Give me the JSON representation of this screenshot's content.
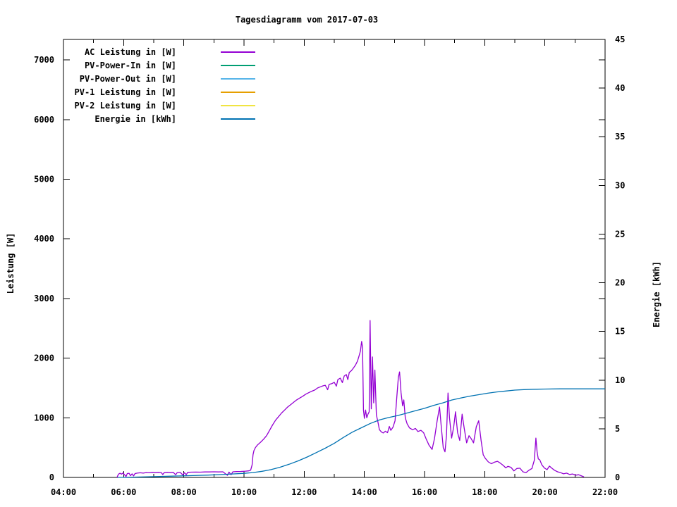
{
  "chart_data": {
    "type": "line",
    "title": "Tagesdiagramm vom 2017-07-03",
    "background_color": "#ffffff",
    "axis_color": "#000000",
    "grid": false,
    "x_axis": {
      "unit": "time of day",
      "range": [
        4,
        22
      ],
      "major_ticks": [
        4,
        6,
        8,
        10,
        12,
        14,
        16,
        18,
        20,
        22
      ],
      "major_tick_labels": [
        "04:00",
        "06:00",
        "08:00",
        "10:00",
        "12:00",
        "14:00",
        "16:00",
        "18:00",
        "20:00",
        "22:00"
      ],
      "minor_ticks": [
        5,
        7,
        9,
        11,
        13,
        15,
        17,
        19,
        21
      ]
    },
    "left_axis": {
      "label": "Leistung [W]",
      "range": [
        0,
        7343
      ],
      "ticks": [
        0,
        1000,
        2000,
        3000,
        4000,
        5000,
        6000,
        7000
      ],
      "tick_labels": [
        "0",
        "1000",
        "2000",
        "3000",
        "4000",
        "5000",
        "6000",
        "7000"
      ]
    },
    "right_axis": {
      "label": "Energie [kWh]",
      "range": [
        0,
        45
      ],
      "ticks": [
        0,
        5,
        10,
        15,
        20,
        25,
        30,
        35,
        40,
        45
      ],
      "tick_labels": [
        "0",
        "5",
        "10",
        "15",
        "20",
        "25",
        "30",
        "35",
        "40",
        "45"
      ],
      "mirror_left_ticks_on_right_border": true
    },
    "legend": {
      "position": "top-left",
      "entries": [
        {
          "label": "AC Leistung in [W]",
          "color": "#9400d3"
        },
        {
          "label": "PV-Power-In in [W]",
          "color": "#009e73"
        },
        {
          "label": "PV-Power-Out in [W]",
          "color": "#56b4e9"
        },
        {
          "label": "PV-1 Leistung in [W]",
          "color": "#e69f00"
        },
        {
          "label": "PV-2 Leistung in [W]",
          "color": "#f0e442"
        },
        {
          "label": "Energie in [kWh]",
          "color": "#0072b2"
        }
      ]
    },
    "series": [
      {
        "name": "AC Leistung in [W]",
        "color": "#9400d3",
        "axis": "left",
        "unit": "W",
        "visible": true,
        "points": [
          [
            5.78,
            0
          ],
          [
            5.8,
            25
          ],
          [
            5.83,
            55
          ],
          [
            5.88,
            70
          ],
          [
            5.93,
            55
          ],
          [
            5.98,
            75
          ],
          [
            6.03,
            45
          ],
          [
            6.08,
            15
          ],
          [
            6.12,
            65
          ],
          [
            6.18,
            70
          ],
          [
            6.23,
            30
          ],
          [
            6.28,
            60
          ],
          [
            6.33,
            25
          ],
          [
            6.38,
            65
          ],
          [
            6.45,
            72
          ],
          [
            6.55,
            78
          ],
          [
            6.65,
            72
          ],
          [
            6.75,
            82
          ],
          [
            6.85,
            78
          ],
          [
            6.95,
            85
          ],
          [
            7.05,
            80
          ],
          [
            7.15,
            85
          ],
          [
            7.25,
            82
          ],
          [
            7.3,
            48
          ],
          [
            7.35,
            80
          ],
          [
            7.45,
            85
          ],
          [
            7.55,
            80
          ],
          [
            7.65,
            85
          ],
          [
            7.73,
            45
          ],
          [
            7.78,
            82
          ],
          [
            7.88,
            85
          ],
          [
            7.97,
            40
          ],
          [
            8.02,
            80
          ],
          [
            8.08,
            45
          ],
          [
            8.13,
            85
          ],
          [
            8.25,
            88
          ],
          [
            8.4,
            90
          ],
          [
            8.55,
            88
          ],
          [
            8.7,
            92
          ],
          [
            8.85,
            92
          ],
          [
            9.0,
            95
          ],
          [
            9.15,
            92
          ],
          [
            9.3,
            95
          ],
          [
            9.45,
            35
          ],
          [
            9.5,
            90
          ],
          [
            9.57,
            45
          ],
          [
            9.63,
            95
          ],
          [
            9.75,
            98
          ],
          [
            9.9,
            100
          ],
          [
            10.05,
            105
          ],
          [
            10.15,
            110
          ],
          [
            10.22,
            120
          ],
          [
            10.27,
            210
          ],
          [
            10.3,
            380
          ],
          [
            10.33,
            450
          ],
          [
            10.38,
            500
          ],
          [
            10.45,
            545
          ],
          [
            10.55,
            590
          ],
          [
            10.65,
            640
          ],
          [
            10.75,
            700
          ],
          [
            10.85,
            790
          ],
          [
            10.95,
            880
          ],
          [
            11.05,
            960
          ],
          [
            11.15,
            1020
          ],
          [
            11.25,
            1080
          ],
          [
            11.35,
            1130
          ],
          [
            11.45,
            1180
          ],
          [
            11.55,
            1220
          ],
          [
            11.65,
            1260
          ],
          [
            11.75,
            1300
          ],
          [
            11.85,
            1330
          ],
          [
            11.95,
            1360
          ],
          [
            12.05,
            1395
          ],
          [
            12.15,
            1420
          ],
          [
            12.25,
            1445
          ],
          [
            12.35,
            1465
          ],
          [
            12.45,
            1500
          ],
          [
            12.55,
            1520
          ],
          [
            12.62,
            1535
          ],
          [
            12.7,
            1545
          ],
          [
            12.78,
            1470
          ],
          [
            12.83,
            1560
          ],
          [
            12.93,
            1575
          ],
          [
            13.0,
            1595
          ],
          [
            13.07,
            1530
          ],
          [
            13.12,
            1640
          ],
          [
            13.2,
            1665
          ],
          [
            13.27,
            1590
          ],
          [
            13.33,
            1700
          ],
          [
            13.4,
            1725
          ],
          [
            13.45,
            1640
          ],
          [
            13.5,
            1760
          ],
          [
            13.57,
            1790
          ],
          [
            13.63,
            1830
          ],
          [
            13.7,
            1880
          ],
          [
            13.77,
            1950
          ],
          [
            13.82,
            2030
          ],
          [
            13.87,
            2120
          ],
          [
            13.91,
            2280
          ],
          [
            13.94,
            2180
          ],
          [
            13.97,
            1130
          ],
          [
            14.0,
            990
          ],
          [
            14.04,
            1130
          ],
          [
            14.08,
            1000
          ],
          [
            14.12,
            1060
          ],
          [
            14.16,
            1100
          ],
          [
            14.19,
            2630
          ],
          [
            14.23,
            1150
          ],
          [
            14.27,
            2020
          ],
          [
            14.31,
            1250
          ],
          [
            14.35,
            1800
          ],
          [
            14.4,
            1050
          ],
          [
            14.45,
            930
          ],
          [
            14.5,
            800
          ],
          [
            14.57,
            760
          ],
          [
            14.63,
            745
          ],
          [
            14.7,
            775
          ],
          [
            14.77,
            750
          ],
          [
            14.83,
            855
          ],
          [
            14.88,
            790
          ],
          [
            14.95,
            840
          ],
          [
            15.02,
            950
          ],
          [
            15.08,
            1350
          ],
          [
            15.13,
            1680
          ],
          [
            15.17,
            1770
          ],
          [
            15.22,
            1420
          ],
          [
            15.27,
            1200
          ],
          [
            15.31,
            1300
          ],
          [
            15.36,
            1000
          ],
          [
            15.42,
            900
          ],
          [
            15.5,
            830
          ],
          [
            15.6,
            800
          ],
          [
            15.7,
            820
          ],
          [
            15.78,
            770
          ],
          [
            15.88,
            790
          ],
          [
            15.97,
            750
          ],
          [
            16.05,
            650
          ],
          [
            16.15,
            540
          ],
          [
            16.25,
            470
          ],
          [
            16.33,
            650
          ],
          [
            16.42,
            950
          ],
          [
            16.5,
            1180
          ],
          [
            16.55,
            880
          ],
          [
            16.62,
            500
          ],
          [
            16.68,
            430
          ],
          [
            16.73,
            700
          ],
          [
            16.78,
            1415
          ],
          [
            16.83,
            1000
          ],
          [
            16.9,
            660
          ],
          [
            16.97,
            850
          ],
          [
            17.03,
            1100
          ],
          [
            17.1,
            750
          ],
          [
            17.17,
            620
          ],
          [
            17.25,
            1060
          ],
          [
            17.32,
            820
          ],
          [
            17.4,
            580
          ],
          [
            17.48,
            700
          ],
          [
            17.55,
            650
          ],
          [
            17.63,
            580
          ],
          [
            17.72,
            850
          ],
          [
            17.8,
            950
          ],
          [
            17.88,
            620
          ],
          [
            17.95,
            380
          ],
          [
            18.02,
            320
          ],
          [
            18.12,
            260
          ],
          [
            18.22,
            230
          ],
          [
            18.32,
            255
          ],
          [
            18.42,
            270
          ],
          [
            18.52,
            240
          ],
          [
            18.62,
            200
          ],
          [
            18.7,
            160
          ],
          [
            18.77,
            185
          ],
          [
            18.87,
            170
          ],
          [
            18.97,
            110
          ],
          [
            19.07,
            150
          ],
          [
            19.17,
            155
          ],
          [
            19.27,
            95
          ],
          [
            19.37,
            80
          ],
          [
            19.47,
            120
          ],
          [
            19.57,
            150
          ],
          [
            19.65,
            290
          ],
          [
            19.7,
            660
          ],
          [
            19.74,
            430
          ],
          [
            19.78,
            310
          ],
          [
            19.83,
            295
          ],
          [
            19.9,
            210
          ],
          [
            19.98,
            160
          ],
          [
            20.07,
            130
          ],
          [
            20.15,
            190
          ],
          [
            20.23,
            155
          ],
          [
            20.32,
            120
          ],
          [
            20.42,
            95
          ],
          [
            20.52,
            80
          ],
          [
            20.62,
            60
          ],
          [
            20.72,
            72
          ],
          [
            20.82,
            50
          ],
          [
            20.92,
            58
          ],
          [
            21.02,
            38
          ],
          [
            21.12,
            45
          ],
          [
            21.22,
            25
          ],
          [
            21.3,
            10
          ]
        ]
      },
      {
        "name": "PV-Power-In in [W]",
        "color": "#009e73",
        "axis": "left",
        "unit": "W",
        "visible": false,
        "points": []
      },
      {
        "name": "PV-Power-Out in [W]",
        "color": "#56b4e9",
        "axis": "left",
        "unit": "W",
        "visible": false,
        "points": []
      },
      {
        "name": "PV-1 Leistung in [W]",
        "color": "#e69f00",
        "axis": "left",
        "unit": "W",
        "visible": false,
        "points": []
      },
      {
        "name": "PV-2 Leistung in [W]",
        "color": "#f0e442",
        "axis": "left",
        "unit": "W",
        "visible": false,
        "points": []
      },
      {
        "name": "Energie in [kWh]",
        "color": "#0072b2",
        "axis": "right",
        "unit": "kWh",
        "visible": true,
        "points": [
          [
            5.8,
            0
          ],
          [
            6.3,
            0.03
          ],
          [
            7.0,
            0.08
          ],
          [
            7.6,
            0.13
          ],
          [
            8.2,
            0.18
          ],
          [
            8.8,
            0.24
          ],
          [
            9.4,
            0.32
          ],
          [
            10.0,
            0.42
          ],
          [
            10.3,
            0.5
          ],
          [
            10.6,
            0.63
          ],
          [
            10.9,
            0.8
          ],
          [
            11.2,
            1.05
          ],
          [
            11.5,
            1.35
          ],
          [
            11.8,
            1.7
          ],
          [
            12.1,
            2.1
          ],
          [
            12.4,
            2.55
          ],
          [
            12.7,
            3.0
          ],
          [
            13.0,
            3.5
          ],
          [
            13.3,
            4.1
          ],
          [
            13.6,
            4.65
          ],
          [
            13.9,
            5.1
          ],
          [
            14.2,
            5.55
          ],
          [
            14.5,
            5.9
          ],
          [
            14.8,
            6.15
          ],
          [
            15.1,
            6.35
          ],
          [
            15.4,
            6.6
          ],
          [
            15.7,
            6.85
          ],
          [
            16.0,
            7.1
          ],
          [
            16.3,
            7.4
          ],
          [
            16.6,
            7.65
          ],
          [
            16.9,
            7.95
          ],
          [
            17.2,
            8.15
          ],
          [
            17.5,
            8.35
          ],
          [
            17.8,
            8.5
          ],
          [
            18.1,
            8.65
          ],
          [
            18.4,
            8.78
          ],
          [
            18.7,
            8.88
          ],
          [
            19.0,
            8.97
          ],
          [
            19.3,
            9.02
          ],
          [
            19.6,
            9.06
          ],
          [
            20.0,
            9.08
          ],
          [
            20.5,
            9.1
          ],
          [
            21.0,
            9.1
          ],
          [
            21.5,
            9.1
          ],
          [
            22.0,
            9.1
          ]
        ]
      }
    ]
  }
}
